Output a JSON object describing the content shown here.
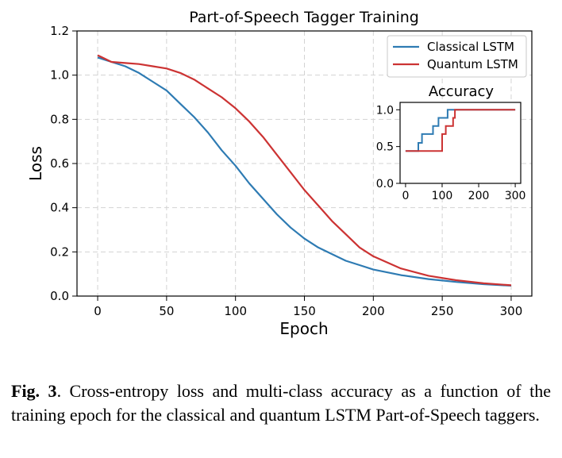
{
  "chart_data": [
    {
      "type": "line",
      "title": "Part-of-Speech Tagger Training",
      "xlabel": "Epoch",
      "ylabel": "Loss",
      "xlim": [
        -15,
        315
      ],
      "ylim": [
        0,
        1.2
      ],
      "xticks": [
        "0",
        "50",
        "100",
        "150",
        "200",
        "250",
        "300"
      ],
      "yticks": [
        "0.0",
        "0.2",
        "0.4",
        "0.6",
        "0.8",
        "1.0",
        "1.2"
      ],
      "grid": true,
      "legend_position": "top-right",
      "series": [
        {
          "name": "Classical LSTM",
          "color": "#2e7bb3",
          "x": [
            0,
            10,
            20,
            30,
            40,
            50,
            60,
            70,
            80,
            90,
            100,
            110,
            120,
            130,
            140,
            150,
            160,
            170,
            180,
            190,
            200,
            220,
            240,
            260,
            280,
            300
          ],
          "y": [
            1.08,
            1.06,
            1.04,
            1.01,
            0.97,
            0.93,
            0.87,
            0.81,
            0.74,
            0.66,
            0.59,
            0.51,
            0.44,
            0.37,
            0.31,
            0.26,
            0.22,
            0.19,
            0.16,
            0.14,
            0.12,
            0.095,
            0.077,
            0.064,
            0.054,
            0.047
          ]
        },
        {
          "name": "Quantum LSTM",
          "color": "#cc3333",
          "x": [
            0,
            10,
            20,
            30,
            40,
            50,
            60,
            70,
            80,
            90,
            100,
            110,
            120,
            130,
            140,
            150,
            160,
            170,
            180,
            190,
            200,
            220,
            240,
            260,
            280,
            300
          ],
          "y": [
            1.09,
            1.06,
            1.055,
            1.05,
            1.04,
            1.03,
            1.01,
            0.98,
            0.94,
            0.9,
            0.85,
            0.79,
            0.72,
            0.64,
            0.56,
            0.48,
            0.41,
            0.34,
            0.28,
            0.22,
            0.18,
            0.125,
            0.092,
            0.072,
            0.058,
            0.049
          ]
        }
      ]
    },
    {
      "type": "line",
      "title": "Accuracy",
      "xlim": [
        -15,
        315
      ],
      "ylim": [
        0,
        1.1
      ],
      "xticks": [
        "0",
        "100",
        "200",
        "300"
      ],
      "yticks": [
        "0.0",
        "0.5",
        "1.0"
      ],
      "grid": false,
      "step": true,
      "series": [
        {
          "name": "Classical LSTM",
          "color": "#2e7bb3",
          "x": [
            0,
            35,
            45,
            65,
            75,
            90,
            105,
            115,
            300
          ],
          "y": [
            0.44,
            0.55,
            0.67,
            0.67,
            0.78,
            0.89,
            0.89,
            1.0,
            1.0
          ]
        },
        {
          "name": "Quantum LSTM",
          "color": "#cc3333",
          "x": [
            0,
            100,
            110,
            125,
            130,
            135,
            300
          ],
          "y": [
            0.44,
            0.67,
            0.78,
            0.78,
            0.89,
            1.0,
            1.0
          ]
        }
      ]
    }
  ],
  "caption": {
    "label": "Fig. 3",
    "text": ".  Cross-entropy loss and multi-class accuracy as a function of the training epoch for the classical and quantum LSTM Part-of-Speech taggers."
  }
}
